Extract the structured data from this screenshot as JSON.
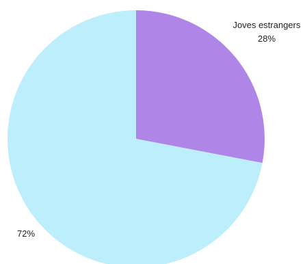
{
  "chart_data": {
    "type": "pie",
    "title": "",
    "start_angle_deg": 0,
    "direction": "clockwise",
    "slices": [
      {
        "label": "Joves estrangers",
        "value": 28,
        "value_label": "28%",
        "color": "#B085E8",
        "show_label": true
      },
      {
        "label": "",
        "value": 72,
        "value_label": "72%",
        "color": "#BCEEFC",
        "show_label": false
      }
    ]
  }
}
